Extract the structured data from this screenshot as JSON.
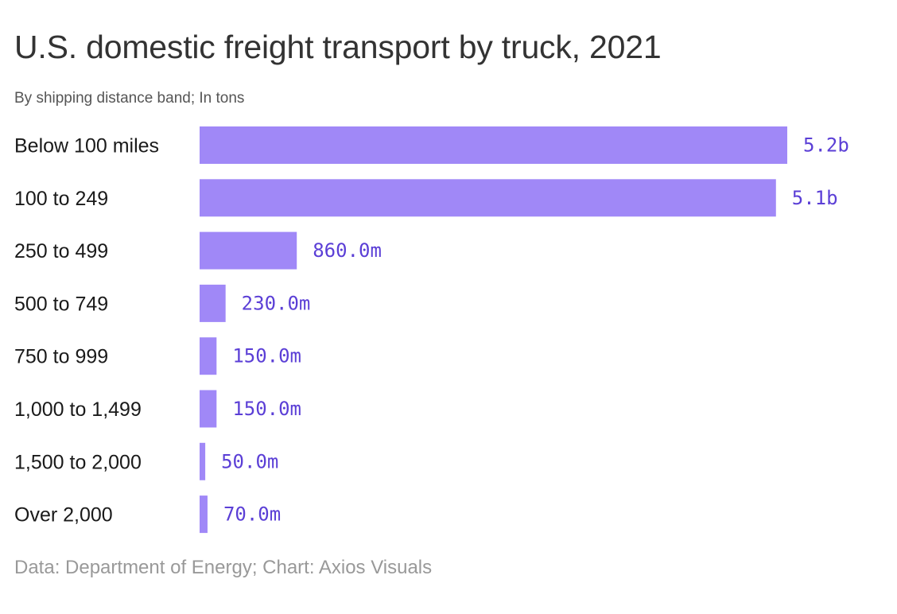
{
  "chart_data": {
    "type": "bar",
    "orientation": "horizontal",
    "title": "U.S. domestic freight transport by truck, 2021",
    "subtitle": "By shipping distance band; In tons",
    "categories": [
      "Below 100 miles",
      "100 to 249",
      "250 to 499",
      "500 to 749",
      "750 to 999",
      "1,000 to 1,499",
      "1,500 to 2,000",
      "Over 2,000"
    ],
    "values": [
      5200000000,
      5100000000,
      860000000,
      230000000,
      150000000,
      150000000,
      50000000,
      70000000
    ],
    "value_labels": [
      "5.2b",
      "5.1b",
      "860.0m",
      "230.0m",
      "150.0m",
      "150.0m",
      "50.0m",
      "70.0m"
    ],
    "unit": "tons",
    "xlim": [
      0,
      5200000000
    ],
    "grid": false,
    "legend": "none",
    "bar_color": "#a088f7",
    "label_color": "#5b3fd6",
    "source": "Data: Department of Energy; Chart: Axios Visuals"
  }
}
